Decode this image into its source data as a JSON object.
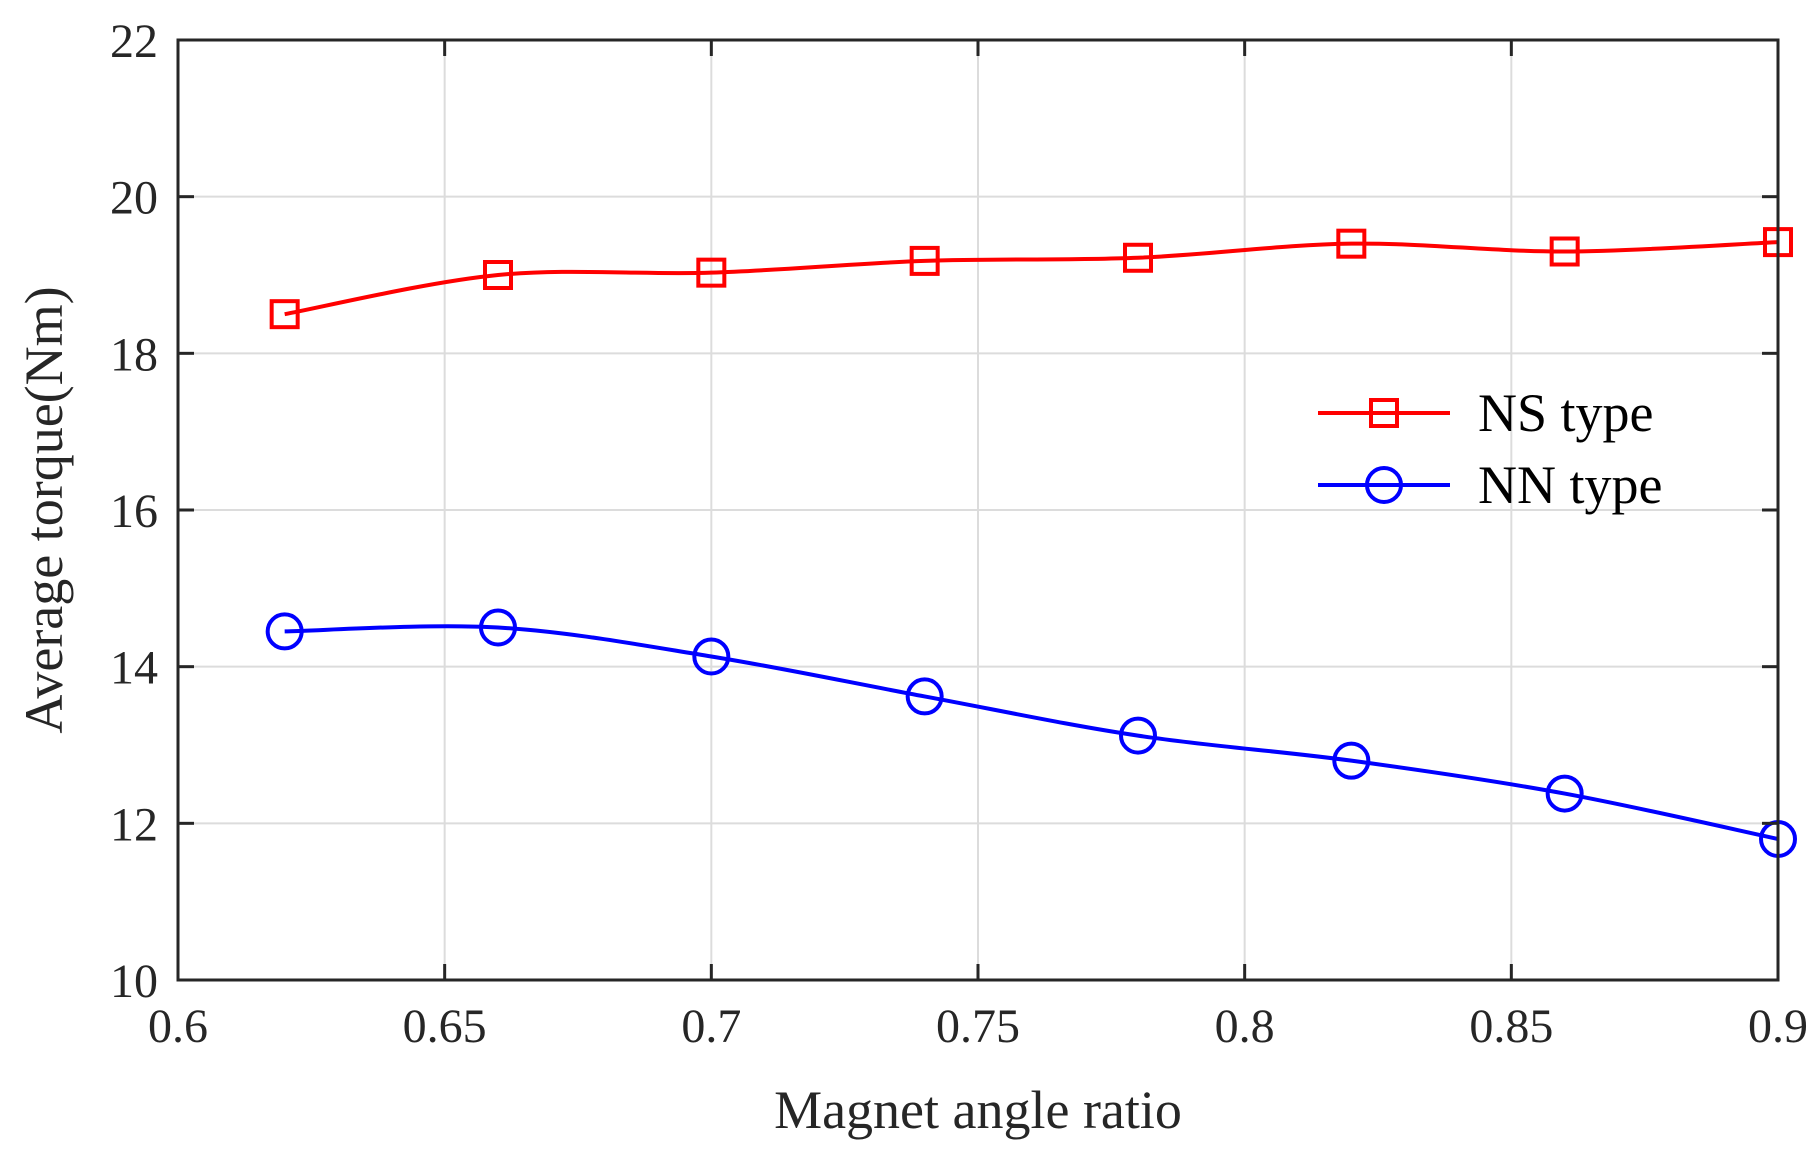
{
  "chart_data": {
    "type": "line",
    "title": "",
    "xlabel": "Magnet angle ratio",
    "ylabel": "Average torque(Nm)",
    "xlim": [
      0.6,
      0.9
    ],
    "ylim": [
      10,
      22
    ],
    "grid": true,
    "xticks": [
      0.6,
      0.65,
      0.7,
      0.75,
      0.8,
      0.85,
      0.9
    ],
    "xtick_labels": [
      "0.6",
      "0.65",
      "0.7",
      "0.75",
      "0.8",
      "0.85",
      "0.9"
    ],
    "yticks": [
      10,
      12,
      14,
      16,
      18,
      20,
      22
    ],
    "ytick_labels": [
      "10",
      "12",
      "14",
      "16",
      "18",
      "20",
      "22"
    ],
    "x": [
      0.62,
      0.66,
      0.7,
      0.74,
      0.78,
      0.82,
      0.86,
      0.9
    ],
    "series": [
      {
        "name": "NS type",
        "marker": "square",
        "color": "#ff0000",
        "values": [
          18.5,
          19.0,
          19.03,
          19.18,
          19.22,
          19.4,
          19.3,
          19.42
        ]
      },
      {
        "name": "NN type",
        "marker": "circle",
        "color": "#0000ff",
        "values": [
          14.45,
          14.5,
          14.13,
          13.62,
          13.12,
          12.8,
          12.38,
          11.8
        ]
      }
    ],
    "legend": {
      "position": "right",
      "entries": [
        "NS type",
        "NN type"
      ]
    }
  }
}
